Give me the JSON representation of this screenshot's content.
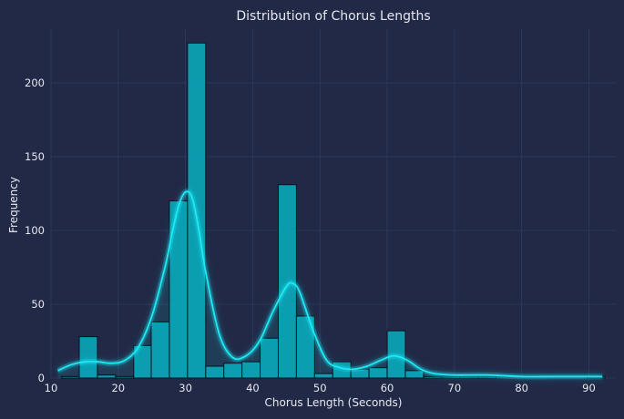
{
  "chart_data": {
    "type": "bar",
    "title": "Distribution of Chorus Lengths",
    "xlabel": "Chorus Length (Seconds)",
    "ylabel": "Frequency",
    "xlim": [
      10,
      94
    ],
    "ylim": [
      0,
      237
    ],
    "xticks": [
      10,
      20,
      30,
      40,
      50,
      60,
      70,
      80,
      90
    ],
    "yticks": [
      0,
      50,
      100,
      150,
      200
    ],
    "grid": true,
    "bins": [
      {
        "x0": 11.6,
        "x1": 14.2,
        "value": 1
      },
      {
        "x0": 14.2,
        "x1": 16.9,
        "value": 28
      },
      {
        "x0": 16.9,
        "x1": 19.6,
        "value": 2
      },
      {
        "x0": 19.6,
        "x1": 22.3,
        "value": 1
      },
      {
        "x0": 22.3,
        "x1": 24.9,
        "value": 22
      },
      {
        "x0": 24.9,
        "x1": 27.6,
        "value": 38
      },
      {
        "x0": 27.6,
        "x1": 30.3,
        "value": 120
      },
      {
        "x0": 30.3,
        "x1": 33.0,
        "value": 227
      },
      {
        "x0": 33.0,
        "x1": 35.7,
        "value": 8
      },
      {
        "x0": 35.7,
        "x1": 38.4,
        "value": 10
      },
      {
        "x0": 38.4,
        "x1": 41.1,
        "value": 11
      },
      {
        "x0": 41.1,
        "x1": 43.8,
        "value": 27
      },
      {
        "x0": 43.8,
        "x1": 46.5,
        "value": 131
      },
      {
        "x0": 46.5,
        "x1": 49.2,
        "value": 42
      },
      {
        "x0": 49.2,
        "x1": 51.9,
        "value": 3
      },
      {
        "x0": 51.9,
        "x1": 54.6,
        "value": 11
      },
      {
        "x0": 54.6,
        "x1": 57.3,
        "value": 6
      },
      {
        "x0": 57.3,
        "x1": 60.0,
        "value": 7
      },
      {
        "x0": 60.0,
        "x1": 62.7,
        "value": 32
      },
      {
        "x0": 62.7,
        "x1": 65.4,
        "value": 5
      },
      {
        "x0": 65.4,
        "x1": 68.1,
        "value": 1
      },
      {
        "x0": 68.1,
        "x1": 70.8,
        "value": 1
      },
      {
        "x0": 70.8,
        "x1": 73.5,
        "value": 1
      },
      {
        "x0": 73.5,
        "x1": 76.2,
        "value": 1
      },
      {
        "x0": 76.2,
        "x1": 78.9,
        "value": 0
      },
      {
        "x0": 78.9,
        "x1": 81.6,
        "value": 0
      },
      {
        "x0": 81.6,
        "x1": 84.3,
        "value": 0
      },
      {
        "x0": 84.3,
        "x1": 87.0,
        "value": 0
      },
      {
        "x0": 87.0,
        "x1": 89.7,
        "value": 0
      },
      {
        "x0": 89.7,
        "x1": 92.4,
        "value": 1
      }
    ],
    "kde": {
      "x": [
        11,
        13,
        15,
        17,
        19,
        21,
        23,
        25,
        27,
        28,
        29,
        30,
        31,
        32,
        33,
        35,
        37,
        39,
        41,
        43,
        45,
        46,
        47,
        49,
        51,
        53,
        55,
        57,
        59,
        61,
        63,
        65,
        67,
        70,
        75,
        80,
        85,
        92
      ],
      "y": [
        5,
        9,
        11,
        11,
        10,
        12,
        21,
        42,
        76,
        98,
        117,
        126,
        122,
        100,
        72,
        30,
        14,
        15,
        25,
        45,
        62,
        64,
        58,
        32,
        12,
        7,
        6,
        8,
        12,
        15,
        12,
        6,
        3,
        2,
        2,
        1,
        1,
        1
      ]
    },
    "colors": {
      "background": "#212946",
      "bar": "#08aebf",
      "kde_line": "#1de9f5",
      "grid": "#2f3b5e"
    }
  }
}
